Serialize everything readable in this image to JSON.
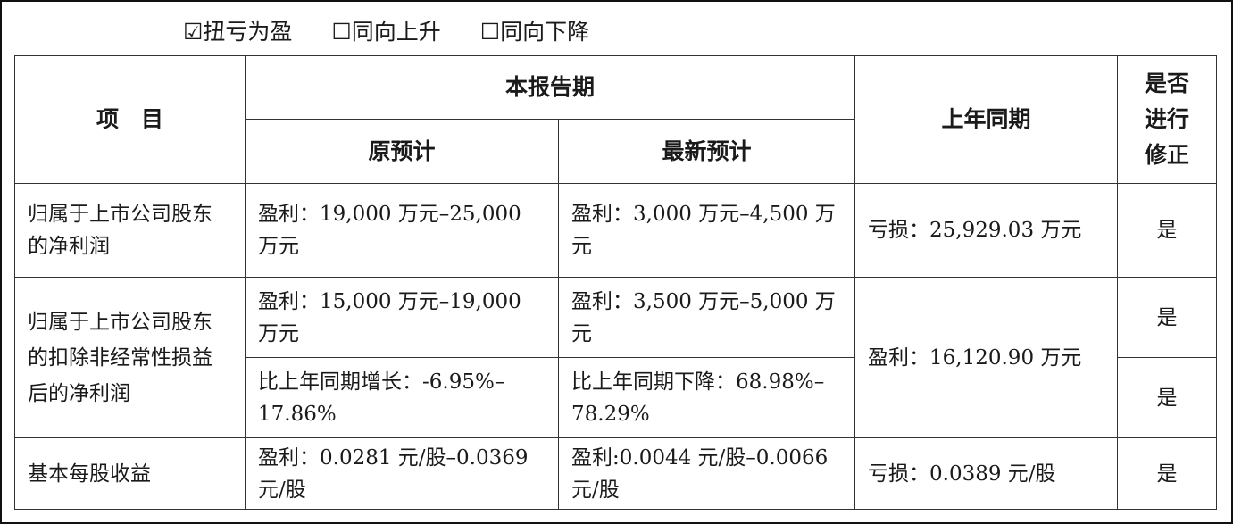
{
  "options": [
    {
      "label": "☑扭亏为盈",
      "checked": true
    },
    {
      "label": "☐同向上升",
      "checked": false
    },
    {
      "label": "☐同向下降",
      "checked": false
    }
  ],
  "header": {
    "item": "项　目",
    "current_period": "本报告期",
    "original_forecast": "原预计",
    "latest_forecast": "最新预计",
    "last_year": "上年同期",
    "revised": "是否进行修正"
  },
  "rows": [
    {
      "item": "归属于上市公司股东的净利润",
      "original": "盈利：19,000 万元–25,000 万元",
      "latest": "盈利：3,000 万元–4,500 万元",
      "last_year": "亏损：25,929.03 万元",
      "revised": "是"
    },
    {
      "item": "归属于上市公司股东的扣除非经常性损益后的净利润",
      "original": "盈利：15,000 万元–19,000 万元",
      "latest": "盈利：3,500 万元–5,000 万元",
      "last_year": "盈利：16,120.90 万元",
      "revised": "是",
      "original_change": "比上年同期增长：-6.95%–17.86%",
      "latest_change": "比上年同期下降：68.98%–78.29%",
      "revised_change": "是"
    },
    {
      "item": "基本每股收益",
      "original": "盈利：0.0281 元/股–0.0369 元/股",
      "latest": "盈利:0.0044 元/股–0.0066 元/股",
      "last_year": "亏损：0.0389 元/股",
      "revised": "是"
    }
  ]
}
